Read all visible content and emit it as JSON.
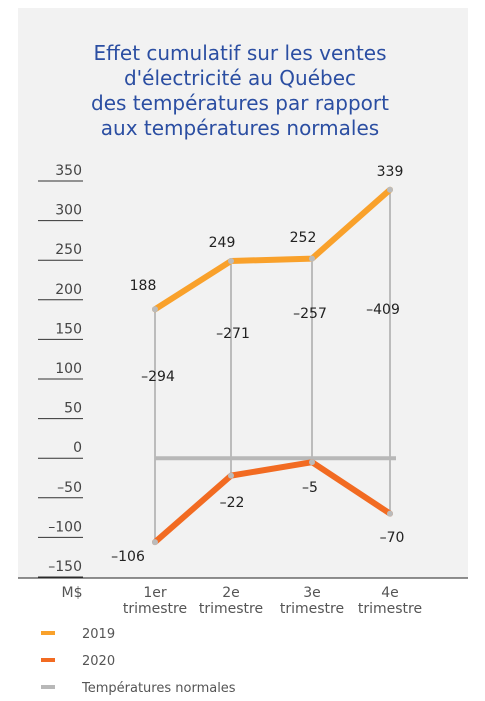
{
  "chart_data": {
    "type": "line",
    "title": [
      "Effet cumulatif sur les ventes",
      "d'électricité au Québec",
      "des températures par rapport",
      "aux températures normales"
    ],
    "y_unit": "M$",
    "categories": [
      "1er trimestre",
      "2e trimestre",
      "3e trimestre",
      "4e trimestre"
    ],
    "series": [
      {
        "name": "2019",
        "color": "#f9a12b",
        "values": [
          188,
          249,
          252,
          339
        ]
      },
      {
        "name": "2020",
        "color": "#f26b22",
        "values": [
          -106,
          -22,
          -5,
          -70
        ],
        "value_labels": [
          "–106",
          "–22",
          "–5",
          "–70"
        ]
      },
      {
        "name": "Températures normales",
        "color": "#b8b8b8",
        "values": [
          0,
          0,
          0,
          0
        ]
      }
    ],
    "differences": {
      "values": [
        -294,
        -271,
        -257,
        -409
      ],
      "value_labels": [
        "–294",
        "–271",
        "–257",
        "–409"
      ]
    },
    "ylim": [
      -150,
      350
    ],
    "yticks": [
      {
        "value": -150,
        "label": "–150"
      },
      {
        "value": -100,
        "label": "–100"
      },
      {
        "value": -50,
        "label": "–50"
      },
      0,
      50,
      100,
      150,
      200,
      250,
      300,
      350
    ]
  }
}
